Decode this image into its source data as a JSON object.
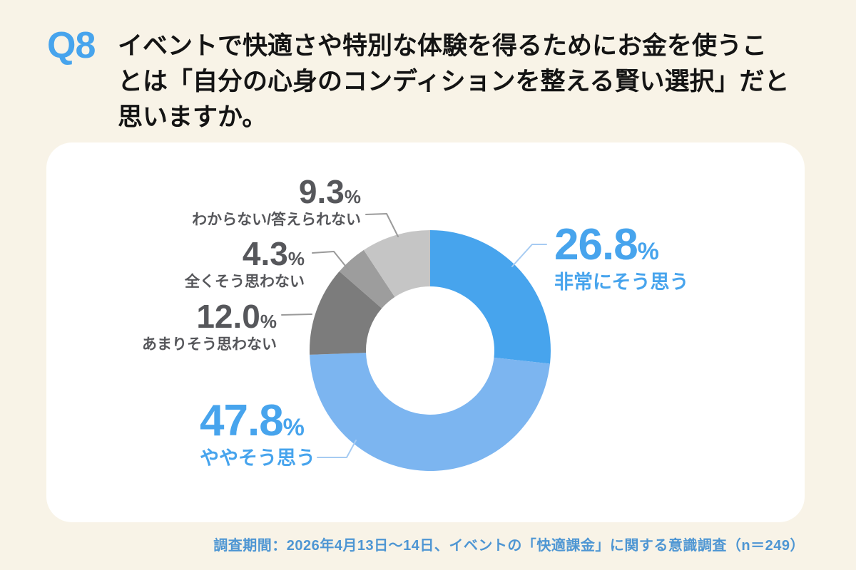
{
  "page": {
    "background_color": "#F8F3E7",
    "question_tag": "Q8",
    "title_lines": [
      "イベントで快適さや特別な体験を得るためにお金を使うこ",
      "とは「自分の心身のコンディションを整える賢い選択」だと",
      "思いますか。"
    ],
    "footer_note": "調査期間：2026年4月13日～14日、イベントの「快適課金」に関する意識調査（n＝249）"
  },
  "colors": {
    "accent_blue": "#47A4ED",
    "light_blue": "#7CB5F0",
    "dark_gray_segment": "#7C7C7C",
    "mid_gray_segment": "#9D9D9D",
    "light_gray_segment": "#C5C5C5",
    "gray_label_text": "#56575B",
    "footer_blue": "#4E96D3",
    "card_background": "#FFFFFF"
  },
  "chart_data": {
    "type": "pie",
    "subtype": "donut",
    "start_angle": "top",
    "direction": "clockwise",
    "title": "",
    "segments": [
      {
        "key": "strongly-agree",
        "label": "非常にそう思う",
        "value": 26.8,
        "display": "26.8",
        "unit": "%",
        "color": "#47A4ED"
      },
      {
        "key": "somewhat-agree",
        "label": "ややそう思う",
        "value": 47.8,
        "display": "47.8",
        "unit": "%",
        "color": "#7CB5F0"
      },
      {
        "key": "somewhat-disagree",
        "label": "あまりそう思わない",
        "value": 12.0,
        "display": "12.0",
        "unit": "%",
        "color": "#7C7C7C"
      },
      {
        "key": "strongly-disagree",
        "label": "全くそう思わない",
        "value": 4.3,
        "display": "4.3",
        "unit": "%",
        "color": "#9D9D9D"
      },
      {
        "key": "unknown",
        "label": "わからない/答えられない",
        "value": 9.3,
        "display": "9.3",
        "unit": "%",
        "color": "#C5C5C5"
      }
    ]
  }
}
